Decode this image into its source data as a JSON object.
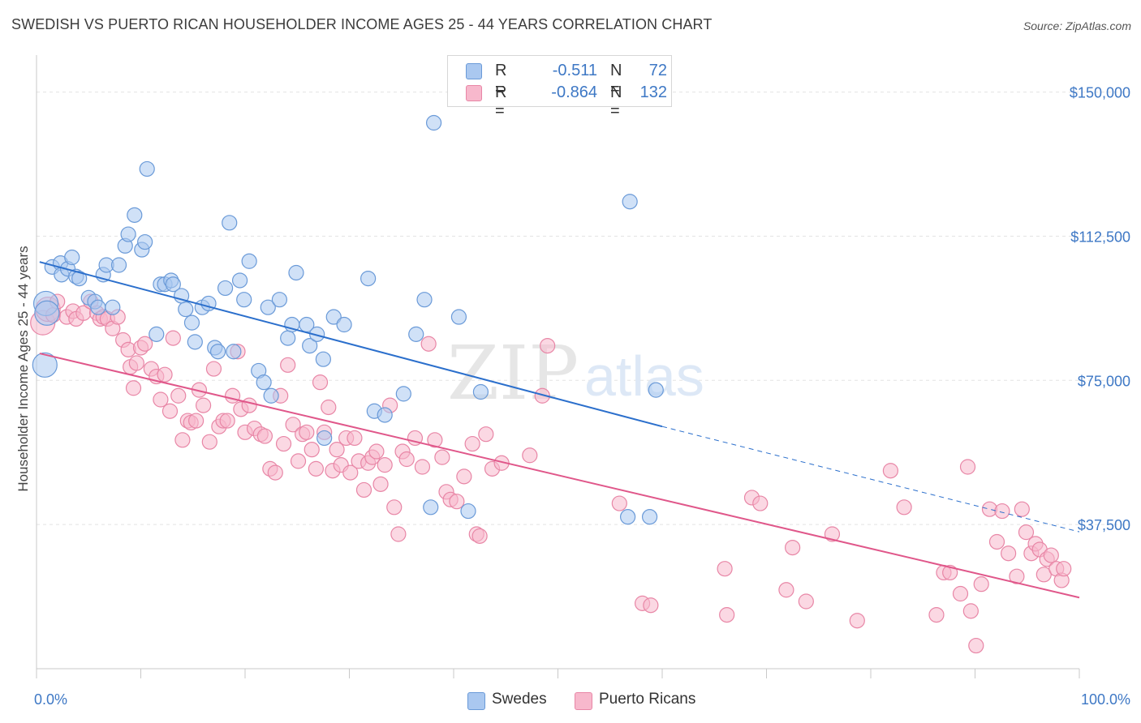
{
  "header": {
    "title": "SWEDISH VS PUERTO RICAN HOUSEHOLDER INCOME AGES 25 - 44 YEARS CORRELATION CHART",
    "source": "Source: ZipAtlas.com"
  },
  "legend": {
    "rows": [
      {
        "r_label": "R =",
        "r_value": "-0.511",
        "n_label": "N =",
        "n_value": "72"
      },
      {
        "r_label": "R =",
        "r_value": "-0.864",
        "n_label": "N =",
        "n_value": "132"
      }
    ]
  },
  "bottom_legend": {
    "swedes": "Swedes",
    "puerto_ricans": "Puerto Ricans"
  },
  "watermark": {
    "zip": "ZIP",
    "atlas": "atlas"
  },
  "colors": {
    "swedes_fill": "#aac8f0",
    "swedes_stroke": "#6a9ad8",
    "swedes_line": "#2b6fcc",
    "pr_fill": "#f7b8cc",
    "pr_stroke": "#e886a6",
    "pr_line": "#e0578a",
    "tick_text": "#3e78c5",
    "grid": "#e3e3e3"
  },
  "chart_data": {
    "type": "scatter",
    "title": "SWEDISH VS PUERTO RICAN HOUSEHOLDER INCOME AGES 25 - 44 YEARS CORRELATION CHART",
    "xlabel": "",
    "ylabel": "Householder Income Ages 25 - 44 years",
    "xlim": [
      0,
      100
    ],
    "ylim": [
      0,
      157500
    ],
    "x_tick_labels": [
      "0.0%",
      "100.0%"
    ],
    "y_ticks": [
      37500,
      75000,
      112500,
      150000
    ],
    "y_tick_labels": [
      "$37,500",
      "$75,000",
      "$112,500",
      "$150,000"
    ],
    "grid": true,
    "legend_position": "top-center",
    "series": [
      {
        "name": "Swedes",
        "r": -0.511,
        "n": 72,
        "trend": {
          "x0": 0.3,
          "y0": 105800,
          "x1": 60,
          "y1": 63000,
          "dashed_to_x": 100,
          "dashed_to_y": 35600
        },
        "points": [
          [
            0.8,
            79000
          ],
          [
            0.9,
            95000
          ],
          [
            1.0,
            92500
          ],
          [
            1.5,
            104500
          ],
          [
            2.3,
            105500
          ],
          [
            2.4,
            102500
          ],
          [
            3.0,
            104000
          ],
          [
            3.4,
            107000
          ],
          [
            3.8,
            102000
          ],
          [
            4.1,
            101500
          ],
          [
            5.0,
            96500
          ],
          [
            5.6,
            95500
          ],
          [
            5.9,
            94000
          ],
          [
            6.4,
            102500
          ],
          [
            6.7,
            105000
          ],
          [
            7.3,
            94000
          ],
          [
            7.9,
            105000
          ],
          [
            8.5,
            110000
          ],
          [
            8.8,
            113000
          ],
          [
            9.4,
            118000
          ],
          [
            10.1,
            109000
          ],
          [
            10.4,
            111000
          ],
          [
            10.6,
            130000
          ],
          [
            11.5,
            87000
          ],
          [
            11.9,
            100000
          ],
          [
            12.3,
            100000
          ],
          [
            12.9,
            101000
          ],
          [
            13.1,
            100000
          ],
          [
            13.9,
            97000
          ],
          [
            14.3,
            93500
          ],
          [
            14.9,
            90000
          ],
          [
            15.2,
            85000
          ],
          [
            15.9,
            94000
          ],
          [
            16.5,
            95000
          ],
          [
            17.1,
            83500
          ],
          [
            17.4,
            82500
          ],
          [
            18.1,
            99000
          ],
          [
            18.5,
            116000
          ],
          [
            18.9,
            82500
          ],
          [
            19.5,
            101000
          ],
          [
            19.9,
            96000
          ],
          [
            20.4,
            106000
          ],
          [
            21.3,
            77500
          ],
          [
            21.8,
            74500
          ],
          [
            22.2,
            94000
          ],
          [
            22.5,
            71000
          ],
          [
            23.3,
            96000
          ],
          [
            24.1,
            86000
          ],
          [
            24.5,
            89500
          ],
          [
            24.9,
            103000
          ],
          [
            25.9,
            89500
          ],
          [
            26.2,
            84000
          ],
          [
            26.9,
            87000
          ],
          [
            27.5,
            80500
          ],
          [
            27.6,
            60000
          ],
          [
            28.5,
            91500
          ],
          [
            29.5,
            89500
          ],
          [
            31.8,
            101500
          ],
          [
            32.4,
            67000
          ],
          [
            33.4,
            66000
          ],
          [
            35.2,
            71500
          ],
          [
            36.4,
            87000
          ],
          [
            37.2,
            96000
          ],
          [
            37.8,
            42000
          ],
          [
            38.1,
            142000
          ],
          [
            40.5,
            91500
          ],
          [
            41.4,
            41000
          ],
          [
            42.6,
            72000
          ],
          [
            56.7,
            39500
          ],
          [
            56.9,
            121500
          ],
          [
            58.8,
            39500
          ],
          [
            59.4,
            72500
          ]
        ]
      },
      {
        "name": "Puerto Ricans",
        "r": -0.864,
        "n": 132,
        "trend": {
          "x0": 0.3,
          "y0": 82000,
          "x1": 100,
          "y1": 18500
        },
        "points": [
          [
            0.6,
            90000
          ],
          [
            1.1,
            93500
          ],
          [
            1.6,
            92000
          ],
          [
            2.0,
            95500
          ],
          [
            2.9,
            91500
          ],
          [
            3.5,
            93000
          ],
          [
            3.8,
            91000
          ],
          [
            4.5,
            92500
          ],
          [
            5.2,
            95500
          ],
          [
            5.8,
            92500
          ],
          [
            6.1,
            91000
          ],
          [
            6.4,
            91500
          ],
          [
            6.8,
            91000
          ],
          [
            7.3,
            88500
          ],
          [
            7.8,
            91500
          ],
          [
            8.3,
            85500
          ],
          [
            8.8,
            83000
          ],
          [
            9.0,
            78500
          ],
          [
            9.3,
            73000
          ],
          [
            9.6,
            79500
          ],
          [
            10.0,
            83500
          ],
          [
            10.4,
            84500
          ],
          [
            11.0,
            78000
          ],
          [
            11.5,
            76000
          ],
          [
            11.9,
            70000
          ],
          [
            12.3,
            76500
          ],
          [
            12.8,
            67000
          ],
          [
            13.1,
            86000
          ],
          [
            13.6,
            71000
          ],
          [
            14.0,
            59500
          ],
          [
            14.5,
            64500
          ],
          [
            14.8,
            64000
          ],
          [
            15.3,
            64500
          ],
          [
            15.6,
            72500
          ],
          [
            16.0,
            68500
          ],
          [
            16.6,
            59000
          ],
          [
            17.0,
            78000
          ],
          [
            17.5,
            63000
          ],
          [
            17.9,
            64500
          ],
          [
            18.3,
            64500
          ],
          [
            18.8,
            71000
          ],
          [
            19.3,
            82500
          ],
          [
            19.6,
            67500
          ],
          [
            20.0,
            61500
          ],
          [
            20.4,
            68500
          ],
          [
            20.9,
            62500
          ],
          [
            21.5,
            61000
          ],
          [
            21.9,
            60500
          ],
          [
            22.4,
            52000
          ],
          [
            22.9,
            51000
          ],
          [
            23.4,
            71000
          ],
          [
            23.7,
            58500
          ],
          [
            24.1,
            79000
          ],
          [
            24.6,
            63500
          ],
          [
            25.1,
            54000
          ],
          [
            25.5,
            61000
          ],
          [
            25.9,
            61500
          ],
          [
            26.4,
            57000
          ],
          [
            26.8,
            52000
          ],
          [
            27.2,
            74500
          ],
          [
            27.6,
            61500
          ],
          [
            28.0,
            68000
          ],
          [
            28.4,
            51500
          ],
          [
            28.8,
            57000
          ],
          [
            29.2,
            53000
          ],
          [
            29.7,
            60000
          ],
          [
            30.1,
            51000
          ],
          [
            30.5,
            60000
          ],
          [
            30.9,
            54000
          ],
          [
            31.4,
            46500
          ],
          [
            31.8,
            53500
          ],
          [
            32.2,
            55000
          ],
          [
            32.6,
            56500
          ],
          [
            33.0,
            48000
          ],
          [
            33.4,
            53000
          ],
          [
            33.9,
            68500
          ],
          [
            34.3,
            42000
          ],
          [
            34.7,
            35000
          ],
          [
            35.1,
            56500
          ],
          [
            35.5,
            54500
          ],
          [
            36.3,
            60000
          ],
          [
            37.0,
            52500
          ],
          [
            37.6,
            84500
          ],
          [
            38.2,
            59500
          ],
          [
            38.9,
            55000
          ],
          [
            39.3,
            46000
          ],
          [
            39.7,
            44000
          ],
          [
            40.3,
            43500
          ],
          [
            41.0,
            50000
          ],
          [
            41.8,
            58500
          ],
          [
            42.2,
            35000
          ],
          [
            42.5,
            34500
          ],
          [
            43.1,
            61000
          ],
          [
            43.7,
            52000
          ],
          [
            44.6,
            53500
          ],
          [
            47.3,
            55500
          ],
          [
            48.5,
            71000
          ],
          [
            49.0,
            84000
          ],
          [
            55.9,
            43000
          ],
          [
            58.1,
            17000
          ],
          [
            58.9,
            16500
          ],
          [
            66.0,
            26000
          ],
          [
            66.2,
            14000
          ],
          [
            68.6,
            44500
          ],
          [
            69.4,
            43000
          ],
          [
            71.9,
            20500
          ],
          [
            72.5,
            31500
          ],
          [
            73.8,
            17500
          ],
          [
            76.3,
            35000
          ],
          [
            78.7,
            12500
          ],
          [
            81.9,
            51500
          ],
          [
            83.2,
            42000
          ],
          [
            86.3,
            14000
          ],
          [
            87.0,
            25000
          ],
          [
            87.6,
            25000
          ],
          [
            88.6,
            19500
          ],
          [
            89.3,
            52500
          ],
          [
            89.6,
            15000
          ],
          [
            90.1,
            6000
          ],
          [
            90.6,
            22000
          ],
          [
            91.4,
            41500
          ],
          [
            92.1,
            33000
          ],
          [
            92.6,
            41000
          ],
          [
            93.2,
            30000
          ],
          [
            94.0,
            24000
          ],
          [
            94.5,
            41500
          ],
          [
            94.9,
            35500
          ],
          [
            95.4,
            30000
          ],
          [
            95.8,
            32500
          ],
          [
            96.2,
            31000
          ],
          [
            96.6,
            24500
          ],
          [
            96.9,
            28500
          ],
          [
            97.3,
            29500
          ],
          [
            97.8,
            26000
          ],
          [
            98.3,
            23000
          ],
          [
            98.5,
            26000
          ]
        ]
      }
    ]
  }
}
